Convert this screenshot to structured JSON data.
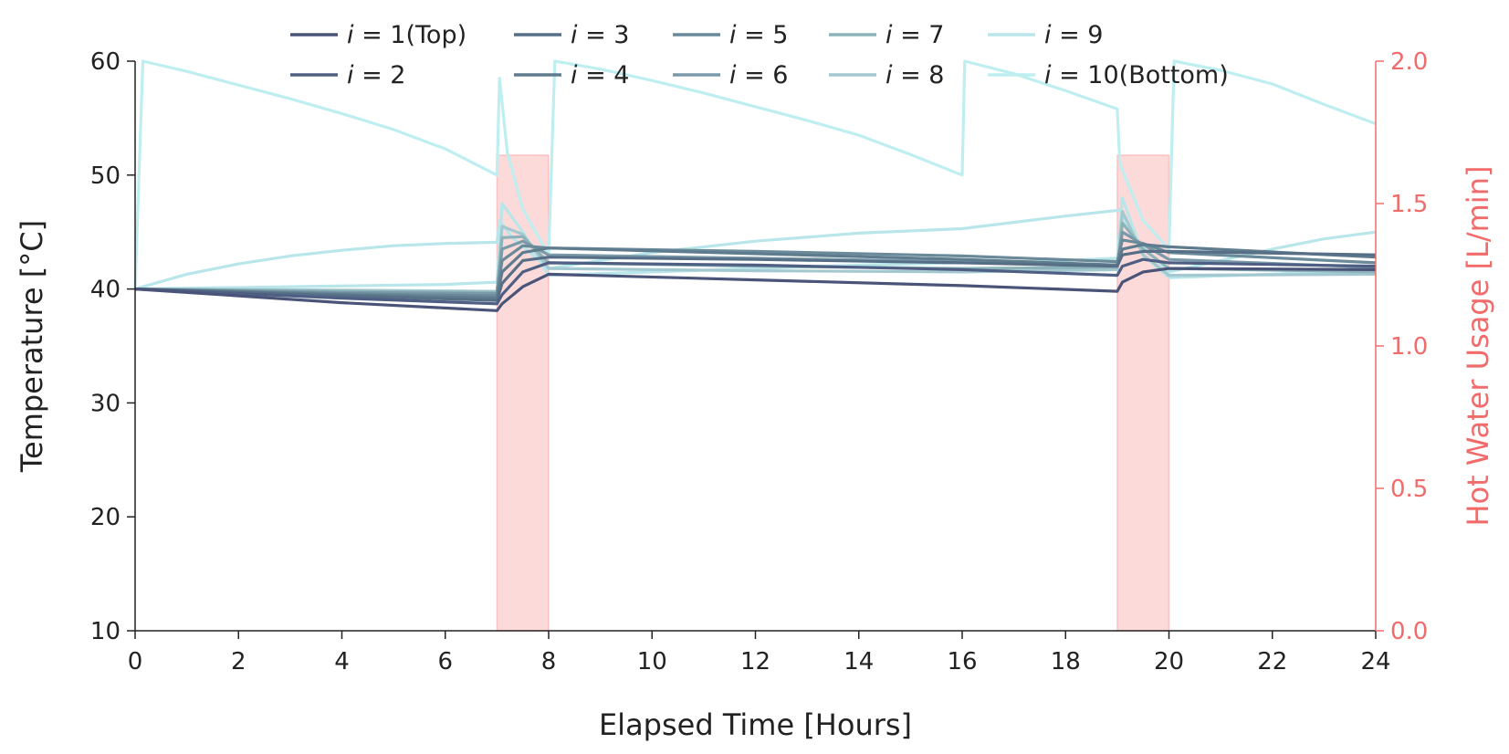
{
  "chart_data": {
    "type": "line",
    "xlabel": "Elapsed Time [Hours]",
    "ylabel": "Temperature [°C]",
    "y2label": "Hot Water Usage [L/min]",
    "xlim": [
      0,
      24
    ],
    "ylim": [
      10,
      60
    ],
    "y2lim": [
      0.0,
      2.0
    ],
    "x_ticks": [
      "0",
      "2",
      "4",
      "6",
      "8",
      "10",
      "12",
      "14",
      "16",
      "18",
      "20",
      "22",
      "24"
    ],
    "y_ticks": [
      "10",
      "20",
      "30",
      "40",
      "50",
      "60"
    ],
    "y2_ticks": [
      "0.0",
      "0.5",
      "1.0",
      "1.5",
      "2.0"
    ],
    "grid": false,
    "legend_position": "top",
    "usage_color": "#f26b6b",
    "usage_bars": [
      {
        "x_start": 7,
        "x_end": 8,
        "value": 1.67
      },
      {
        "x_start": 19,
        "x_end": 20,
        "value": 1.67
      }
    ],
    "series": [
      {
        "var": "i",
        "text": " = 1(Top)",
        "color": "#4a5478",
        "points": [
          [
            0,
            40
          ],
          [
            4,
            38.8
          ],
          [
            7,
            38.1
          ],
          [
            7.1,
            38.7
          ],
          [
            7.5,
            40.2
          ],
          [
            8,
            41.3
          ],
          [
            12,
            40.8
          ],
          [
            16,
            40.3
          ],
          [
            19,
            39.8
          ],
          [
            19.1,
            40.6
          ],
          [
            19.5,
            41.5
          ],
          [
            20,
            41.8
          ],
          [
            24,
            41.7
          ]
        ]
      },
      {
        "var": "i",
        "text": " = 2",
        "color": "#4e5f83",
        "points": [
          [
            0,
            40
          ],
          [
            4,
            39.2
          ],
          [
            7,
            38.7
          ],
          [
            7.1,
            39.5
          ],
          [
            7.5,
            41.5
          ],
          [
            8,
            42.3
          ],
          [
            12,
            42.1
          ],
          [
            16,
            41.7
          ],
          [
            19,
            41.2
          ],
          [
            19.1,
            42.0
          ],
          [
            19.5,
            42.6
          ],
          [
            20,
            42.3
          ],
          [
            24,
            42.0
          ]
        ]
      },
      {
        "var": "i",
        "text": " = 3",
        "color": "#566f86",
        "points": [
          [
            0,
            40
          ],
          [
            4,
            39.4
          ],
          [
            7,
            39.0
          ],
          [
            7.1,
            40.5
          ],
          [
            7.5,
            42.5
          ],
          [
            8,
            42.8
          ],
          [
            12,
            42.6
          ],
          [
            16,
            42.3
          ],
          [
            19,
            42.0
          ],
          [
            19.1,
            43.0
          ],
          [
            19.5,
            43.3
          ],
          [
            20,
            43.3
          ],
          [
            24,
            43.0
          ]
        ]
      },
      {
        "var": "i",
        "text": " = 4",
        "color": "#5e7c8e",
        "points": [
          [
            0,
            40
          ],
          [
            4,
            39.5
          ],
          [
            7,
            39.2
          ],
          [
            7.1,
            41.5
          ],
          [
            7.5,
            43.2
          ],
          [
            8,
            43.6
          ],
          [
            12,
            43.1
          ],
          [
            16,
            42.6
          ],
          [
            19,
            42.1
          ],
          [
            19.1,
            43.5
          ],
          [
            19.5,
            43.9
          ],
          [
            20,
            43.7
          ],
          [
            24,
            42.8
          ]
        ]
      },
      {
        "var": "i",
        "text": " = 5",
        "color": "#6a8a9a",
        "points": [
          [
            0,
            40
          ],
          [
            4,
            39.6
          ],
          [
            7,
            39.4
          ],
          [
            7.1,
            42.5
          ],
          [
            7.5,
            43.8
          ],
          [
            8,
            43.6
          ],
          [
            12,
            43.3
          ],
          [
            16,
            42.9
          ],
          [
            19,
            42.4
          ],
          [
            19.1,
            44.3
          ],
          [
            19.5,
            44.0
          ],
          [
            20,
            43.2
          ],
          [
            24,
            42.3
          ]
        ]
      },
      {
        "var": "i",
        "text": " = 6",
        "color": "#7b9aa9",
        "points": [
          [
            0,
            40
          ],
          [
            4,
            39.7
          ],
          [
            7,
            39.6
          ],
          [
            7.1,
            43.5
          ],
          [
            7.5,
            44.2
          ],
          [
            8,
            43.0
          ],
          [
            12,
            42.7
          ],
          [
            16,
            42.4
          ],
          [
            19,
            42.1
          ],
          [
            19.1,
            45.0
          ],
          [
            19.5,
            43.9
          ],
          [
            20,
            42.6
          ],
          [
            24,
            41.9
          ]
        ]
      },
      {
        "var": "i",
        "text": " = 7",
        "color": "#8db3ba",
        "points": [
          [
            0,
            40
          ],
          [
            4,
            39.8
          ],
          [
            7,
            39.7
          ],
          [
            7.1,
            44.5
          ],
          [
            7.5,
            44.6
          ],
          [
            8,
            42.3
          ],
          [
            12,
            42.0
          ],
          [
            16,
            41.8
          ],
          [
            19,
            41.9
          ],
          [
            19.1,
            45.8
          ],
          [
            19.5,
            43.5
          ],
          [
            20,
            41.8
          ],
          [
            24,
            41.5
          ]
        ]
      },
      {
        "var": "i",
        "text": " = 8",
        "color": "#a4c8d0",
        "points": [
          [
            0,
            40
          ],
          [
            4,
            39.9
          ],
          [
            7,
            39.8
          ],
          [
            7.1,
            45.5
          ],
          [
            7.5,
            44.8
          ],
          [
            8,
            41.8
          ],
          [
            12,
            41.6
          ],
          [
            16,
            41.5
          ],
          [
            19,
            41.7
          ],
          [
            19.1,
            46.8
          ],
          [
            19.5,
            43.0
          ],
          [
            20,
            41.2
          ],
          [
            24,
            41.3
          ]
        ]
      },
      {
        "var": "i",
        "text": " = 9",
        "color": "#b8e6ea",
        "points": [
          [
            0,
            40
          ],
          [
            3,
            40.2
          ],
          [
            6,
            40.4
          ],
          [
            7,
            40.6
          ],
          [
            7.1,
            47.5
          ],
          [
            7.5,
            45.0
          ],
          [
            8,
            41.2
          ],
          [
            10,
            41.5
          ],
          [
            14,
            42.1
          ],
          [
            18,
            42.5
          ],
          [
            19,
            42.7
          ],
          [
            19.1,
            48.0
          ],
          [
            19.5,
            43.0
          ],
          [
            20,
            41.0
          ],
          [
            22,
            41.3
          ],
          [
            24,
            41.7
          ]
        ]
      },
      {
        "var": "i",
        "text": " = 10(Bottom)",
        "color": "#bfeef0",
        "points": [
          [
            0,
            40
          ],
          [
            0.15,
            60
          ],
          [
            1,
            59.1
          ],
          [
            2,
            57.9
          ],
          [
            3,
            56.7
          ],
          [
            4,
            55.4
          ],
          [
            5,
            54
          ],
          [
            6,
            52.3
          ],
          [
            7,
            50
          ],
          [
            7.05,
            58.5
          ],
          [
            7.2,
            52
          ],
          [
            7.5,
            47
          ],
          [
            8,
            43
          ],
          [
            8.12,
            60
          ],
          [
            9,
            59.3
          ],
          [
            10,
            58.3
          ],
          [
            11,
            57.2
          ],
          [
            12,
            56.0
          ],
          [
            13,
            54.8
          ],
          [
            14,
            53.5
          ],
          [
            15,
            51.8
          ],
          [
            16,
            50
          ],
          [
            16.05,
            60
          ],
          [
            17,
            58.9
          ],
          [
            18,
            57.4
          ],
          [
            19,
            55.8
          ],
          [
            19.05,
            51
          ],
          [
            19.5,
            46
          ],
          [
            20,
            43.5
          ],
          [
            20.1,
            60
          ],
          [
            21,
            59.2
          ],
          [
            22,
            58
          ],
          [
            23,
            56.2
          ],
          [
            24,
            54.5
          ]
        ]
      },
      {
        "var": "",
        "text": "",
        "color": "#b8e6ea",
        "points": [
          [
            0,
            40
          ],
          [
            1,
            41.3
          ],
          [
            2,
            42.2
          ],
          [
            3,
            42.9
          ],
          [
            4,
            43.4
          ],
          [
            5,
            43.8
          ],
          [
            6,
            44.0
          ],
          [
            7,
            44.1
          ],
          [
            7.05,
            46
          ],
          [
            7.3,
            44.5
          ],
          [
            8,
            41.8
          ],
          [
            10,
            43.2
          ],
          [
            12,
            44.2
          ],
          [
            14,
            44.9
          ],
          [
            16,
            45.3
          ],
          [
            18,
            46.4
          ],
          [
            19,
            46.9
          ],
          [
            19.05,
            47
          ],
          [
            19.3,
            44.5
          ],
          [
            20,
            41.5
          ],
          [
            21,
            42.5
          ],
          [
            22,
            43.5
          ],
          [
            23,
            44.4
          ],
          [
            24,
            45.0
          ]
        ]
      }
    ]
  }
}
